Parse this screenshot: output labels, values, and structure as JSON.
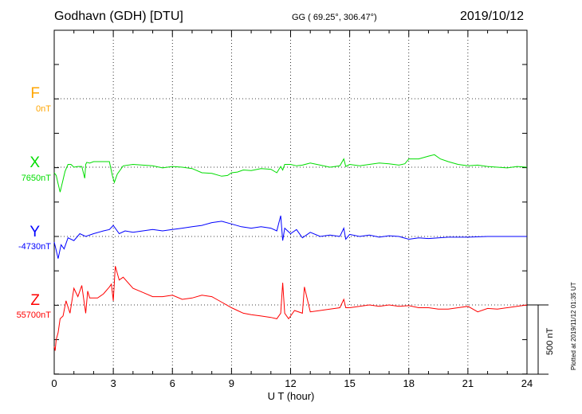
{
  "header": {
    "station": "Godhavn (GDH)  [DTU]",
    "coords": "GG ( 69.25°, 306.47°)",
    "date": "2019/10/12"
  },
  "footer": {
    "xlabel": "U T (hour)",
    "plotted": "Plotted at 2019/11/12 01:35 UT",
    "scale": "500 nT"
  },
  "colors": {
    "F": "#ffa500",
    "X": "#00dd00",
    "Y": "#0000ff",
    "Z": "#ff0000"
  },
  "chart_data": {
    "type": "line",
    "title": "Godhavn (GDH)  [DTU]",
    "xlabel": "U T (hour)",
    "ylabel": "",
    "xlim": [
      0,
      24
    ],
    "xticks": [
      "0",
      "3",
      "6",
      "9",
      "12",
      "15",
      "18",
      "21",
      "24"
    ],
    "grid": true,
    "scale_bar_nT": 500,
    "series": [
      {
        "name": "F",
        "baseline_label": "0nT",
        "x": [],
        "y": []
      },
      {
        "name": "X",
        "baseline_label": "7650nT",
        "x": [
          0,
          0.1,
          0.2,
          0.3,
          0.45,
          0.55,
          0.7,
          0.85,
          1.0,
          1.2,
          1.4,
          1.55,
          1.6,
          1.65,
          1.8,
          2.0,
          2.5,
          2.8,
          2.95,
          3.05,
          3.2,
          3.5,
          4,
          4.5,
          5,
          5.5,
          6,
          6.5,
          7,
          7.5,
          8,
          8.5,
          8.8,
          9,
          9.3,
          9.6,
          10,
          10.5,
          11,
          11.3,
          11.5,
          11.6,
          11.7,
          12,
          12.3,
          12.6,
          13,
          13.5,
          14,
          14.5,
          14.7,
          14.8,
          15,
          15.5,
          16,
          16.5,
          17,
          17.5,
          17.8,
          18,
          18.5,
          19,
          19.3,
          19.6,
          20,
          20.5,
          21,
          21.5,
          22,
          22.5,
          23,
          23.5,
          24
        ],
        "y": [
          -40,
          -60,
          -120,
          -180,
          -90,
          -30,
          20,
          20,
          0,
          5,
          5,
          -80,
          20,
          35,
          30,
          40,
          40,
          40,
          -60,
          -110,
          -50,
          10,
          20,
          15,
          10,
          -5,
          5,
          0,
          -10,
          -40,
          -45,
          -65,
          -60,
          -40,
          -35,
          -20,
          -25,
          -10,
          -15,
          -40,
          5,
          -20,
          20,
          20,
          10,
          15,
          30,
          15,
          0,
          10,
          60,
          5,
          20,
          10,
          20,
          30,
          25,
          15,
          25,
          60,
          60,
          80,
          90,
          60,
          40,
          20,
          10,
          15,
          5,
          0,
          -5,
          5,
          0
        ]
      },
      {
        "name": "Y",
        "baseline_label": "-4730nT",
        "x": [
          0,
          0.1,
          0.2,
          0.35,
          0.5,
          0.7,
          1,
          1.3,
          1.6,
          2,
          2.5,
          2.8,
          3,
          3.3,
          3.6,
          4,
          4.5,
          5,
          5.5,
          6,
          6.5,
          7,
          7.5,
          8,
          8.5,
          9,
          9.5,
          10,
          10.5,
          11,
          11.3,
          11.5,
          11.6,
          11.7,
          12,
          12.3,
          12.6,
          13,
          13.5,
          14,
          14.5,
          14.7,
          14.8,
          15,
          15.5,
          16,
          16.5,
          17,
          17.5,
          18,
          18.5,
          19,
          19.5,
          20,
          21,
          22,
          23,
          24
        ],
        "y": [
          -40,
          -100,
          -160,
          -60,
          -90,
          -10,
          -30,
          20,
          0,
          20,
          40,
          50,
          80,
          20,
          40,
          30,
          40,
          50,
          40,
          50,
          60,
          70,
          80,
          100,
          110,
          90,
          70,
          60,
          70,
          60,
          40,
          150,
          -30,
          60,
          20,
          50,
          -10,
          30,
          0,
          10,
          0,
          60,
          -20,
          15,
          0,
          10,
          -5,
          5,
          0,
          -20,
          -10,
          -15,
          -10,
          -5,
          -5,
          0,
          0,
          0
        ]
      },
      {
        "name": "Z",
        "baseline_label": "55700nT",
        "x": [
          0,
          0.05,
          0.1,
          0.2,
          0.3,
          0.45,
          0.6,
          0.8,
          1.0,
          1.2,
          1.4,
          1.6,
          1.7,
          1.8,
          2,
          2.2,
          2.5,
          2.8,
          2.9,
          3.0,
          3.1,
          3.3,
          3.5,
          4,
          4.5,
          5,
          5.5,
          6,
          6.5,
          7,
          7.5,
          8,
          8.5,
          9,
          9.3,
          9.6,
          10,
          10.5,
          11,
          11.3,
          11.5,
          11.6,
          11.7,
          11.9,
          12.2,
          12.6,
          12.7,
          13,
          13.5,
          14,
          14.5,
          14.7,
          14.8,
          15,
          15.5,
          16,
          16.5,
          17,
          17.5,
          18,
          18.5,
          19,
          19.5,
          20,
          20.5,
          21,
          21.5,
          22,
          22.5,
          23,
          23.5,
          24
        ],
        "y": [
          -300,
          -330,
          -250,
          -200,
          -100,
          -80,
          30,
          -60,
          120,
          60,
          140,
          -60,
          100,
          50,
          50,
          50,
          80,
          130,
          150,
          30,
          280,
          180,
          200,
          120,
          90,
          60,
          60,
          70,
          40,
          50,
          70,
          60,
          20,
          -20,
          -40,
          -60,
          -70,
          -80,
          -90,
          -100,
          -60,
          160,
          -60,
          -100,
          -40,
          -60,
          130,
          -50,
          -40,
          -30,
          -20,
          40,
          -20,
          -20,
          -10,
          0,
          -10,
          0,
          -10,
          -5,
          -20,
          -20,
          -30,
          -30,
          -20,
          -10,
          -50,
          -25,
          -30,
          -20,
          -10,
          0
        ]
      }
    ]
  }
}
